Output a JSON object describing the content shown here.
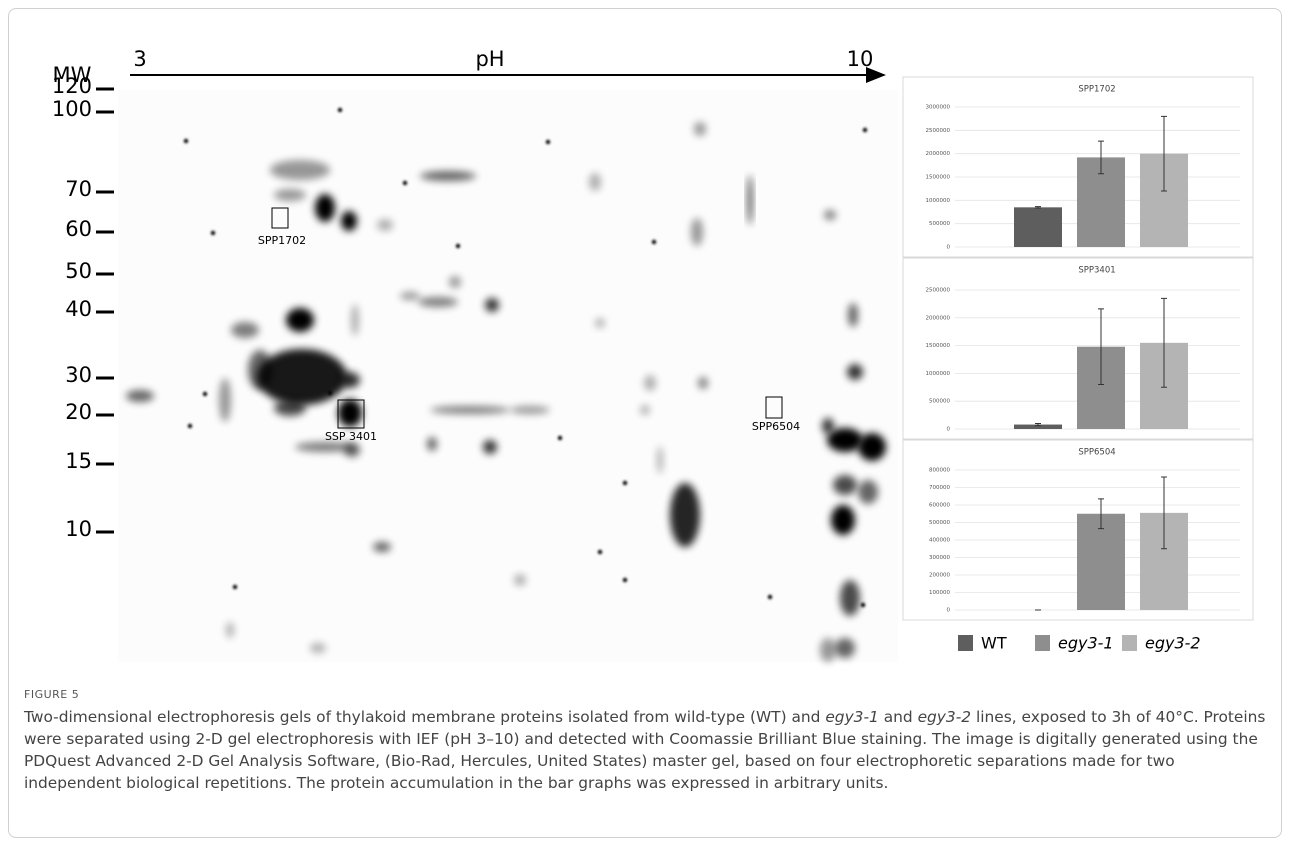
{
  "gel": {
    "mw_label": "MW",
    "ph_label": "pH",
    "ph_start": "3",
    "ph_end": "10",
    "mw": [
      "120",
      "100",
      "70",
      "60",
      "50",
      "40",
      "30",
      "20",
      "15",
      "10"
    ],
    "spots": [
      "SPP1702",
      "SSP 3401",
      "SPP6504"
    ]
  },
  "chart_data": [
    {
      "type": "bar",
      "title": "SPP1702",
      "ylim": [
        0,
        3000000
      ],
      "yticks": [
        0,
        500000,
        1000000,
        1500000,
        2000000,
        2500000,
        3000000
      ],
      "grid": true,
      "series": [
        {
          "name": "WT",
          "color": "#5e5e5e",
          "values": [
            850000
          ],
          "errors": [
            15000
          ]
        },
        {
          "name": "egy3-1",
          "color": "#8e8e8e",
          "values": [
            1920000
          ],
          "errors": [
            350000
          ]
        },
        {
          "name": "egy3-2",
          "color": "#b4b4b4",
          "values": [
            2000000
          ],
          "errors": [
            800000
          ]
        }
      ]
    },
    {
      "type": "bar",
      "title": "SPP3401",
      "ylim": [
        0,
        2500000
      ],
      "yticks": [
        0,
        500000,
        1000000,
        1500000,
        2000000,
        2500000
      ],
      "grid": true,
      "series": [
        {
          "name": "WT",
          "color": "#5e5e5e",
          "values": [
            80000
          ],
          "errors": [
            20000
          ]
        },
        {
          "name": "egy3-1",
          "color": "#8e8e8e",
          "values": [
            1480000
          ],
          "errors": [
            680000
          ]
        },
        {
          "name": "egy3-2",
          "color": "#b4b4b4",
          "values": [
            1550000
          ],
          "errors": [
            800000
          ]
        }
      ]
    },
    {
      "type": "bar",
      "title": "SPP6504",
      "ylim": [
        0,
        800000
      ],
      "yticks": [
        0,
        100000,
        200000,
        300000,
        400000,
        500000,
        600000,
        700000,
        800000
      ],
      "grid": true,
      "series": [
        {
          "name": "WT",
          "color": "#5e5e5e",
          "values": [
            0
          ],
          "errors": [
            0
          ]
        },
        {
          "name": "egy3-1",
          "color": "#8e8e8e",
          "values": [
            550000
          ],
          "errors": [
            85000
          ]
        },
        {
          "name": "egy3-2",
          "color": "#b4b4b4",
          "values": [
            555000
          ],
          "errors": [
            205000
          ]
        }
      ]
    }
  ],
  "caption": {
    "label": "FIGURE 5",
    "text": [
      "Two-dimensional electrophoresis gels of thylakoid membrane proteins isolated from wild-type (WT) and ",
      "egy3-1",
      " and ",
      "egy3-2",
      " lines, exposed to 3h of 40°C. Proteins were separated using 2-D gel electrophoresis with IEF (pH 3–10) and detected with Coomassie Brilliant Blue staining. The image is digitally generated using the PDQuest Advanced 2-D Gel Analysis Software, (Bio-Rad, Hercules, United States) master gel, based on four electrophoretic separations made for two independent biological repetitions. The protein accumulation in the bar graphs was expressed in arbitrary units."
    ]
  }
}
